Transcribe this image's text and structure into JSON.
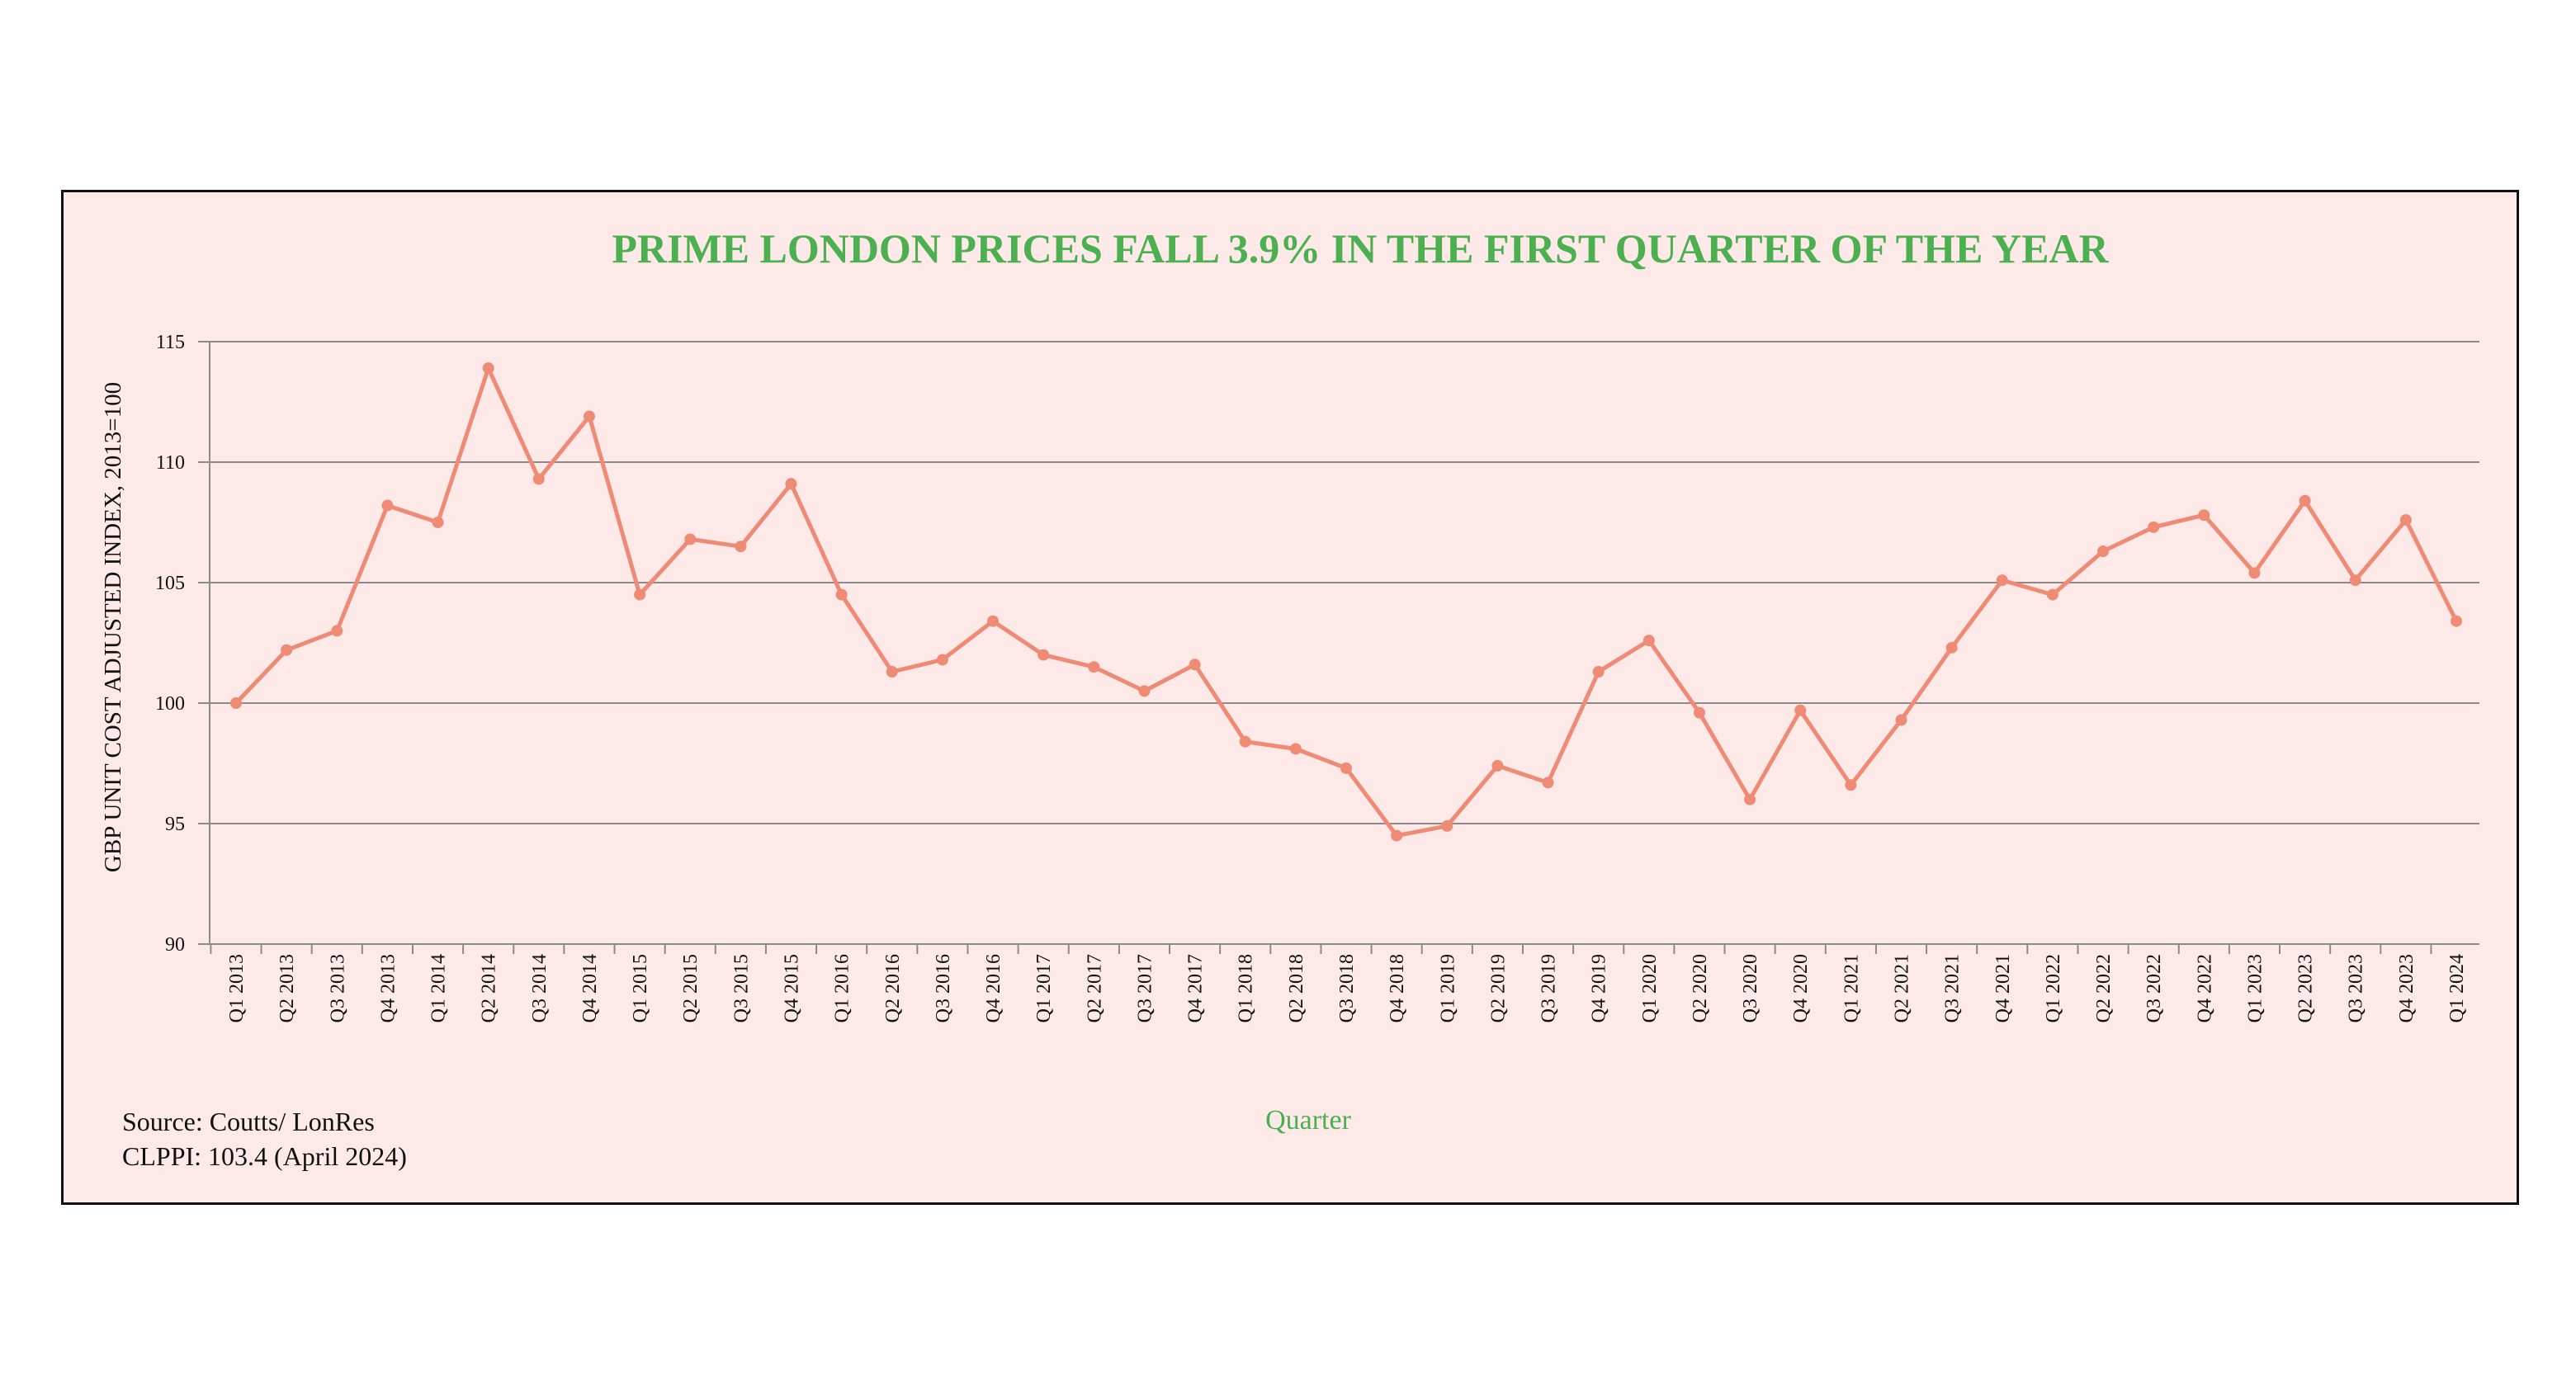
{
  "chart_data": {
    "type": "line",
    "title": "PRIME LONDON PRICES FALL 3.9% IN THE FIRST QUARTER OF THE YEAR",
    "xlabel": "Quarter",
    "ylabel": "GBP UNIT COST ADJUSTED INDEX, 2013=100",
    "ylim": [
      90,
      115
    ],
    "yticks": [
      "90",
      "95",
      "100",
      "105",
      "110",
      "115"
    ],
    "grid": "horizontal",
    "line_color": "#ef8a74",
    "title_color": "#4caf50",
    "background_color": "#fde9e8",
    "categories": [
      "Q1 2013",
      "Q2 2013",
      "Q3 2013",
      "Q4 2013",
      "Q1 2014",
      "Q2 2014",
      "Q3 2014",
      "Q4 2014",
      "Q1 2015",
      "Q2 2015",
      "Q3 2015",
      "Q4 2015",
      "Q1 2016",
      "Q2 2016",
      "Q3 2016",
      "Q4 2016",
      "Q1 2017",
      "Q2 2017",
      "Q3 2017",
      "Q4 2017",
      "Q1 2018",
      "Q2 2018",
      "Q3 2018",
      "Q4 2018",
      "Q1 2019",
      "Q2 2019",
      "Q3 2019",
      "Q4 2019",
      "Q1 2020",
      "Q2 2020",
      "Q3 2020",
      "Q4 2020",
      "Q1 2021",
      "Q2 2021",
      "Q3 2021",
      "Q4 2021",
      "Q1 2022",
      "Q2 2022",
      "Q3 2022",
      "Q4 2022",
      "Q1 2023",
      "Q2 2023",
      "Q3 2023",
      "Q4 2023",
      "Q1 2024"
    ],
    "series": [
      {
        "values": [
          100.0,
          102.2,
          103.0,
          108.2,
          107.5,
          113.9,
          109.3,
          111.9,
          104.5,
          106.8,
          106.5,
          109.1,
          104.5,
          101.3,
          101.8,
          103.4,
          102.0,
          101.5,
          100.5,
          101.6,
          98.4,
          98.1,
          97.3,
          94.5,
          94.9,
          97.4,
          96.7,
          101.3,
          102.6,
          99.6,
          96.0,
          99.7,
          96.6,
          99.3,
          102.3,
          105.1,
          104.5,
          106.3,
          107.3,
          107.8,
          105.4,
          108.4,
          105.1,
          107.6,
          103.4
        ]
      }
    ]
  },
  "notes": {
    "source": "Source: Coutts/ LonRes",
    "clppi": "CLPPI: 103.4 (April 2024)"
  }
}
